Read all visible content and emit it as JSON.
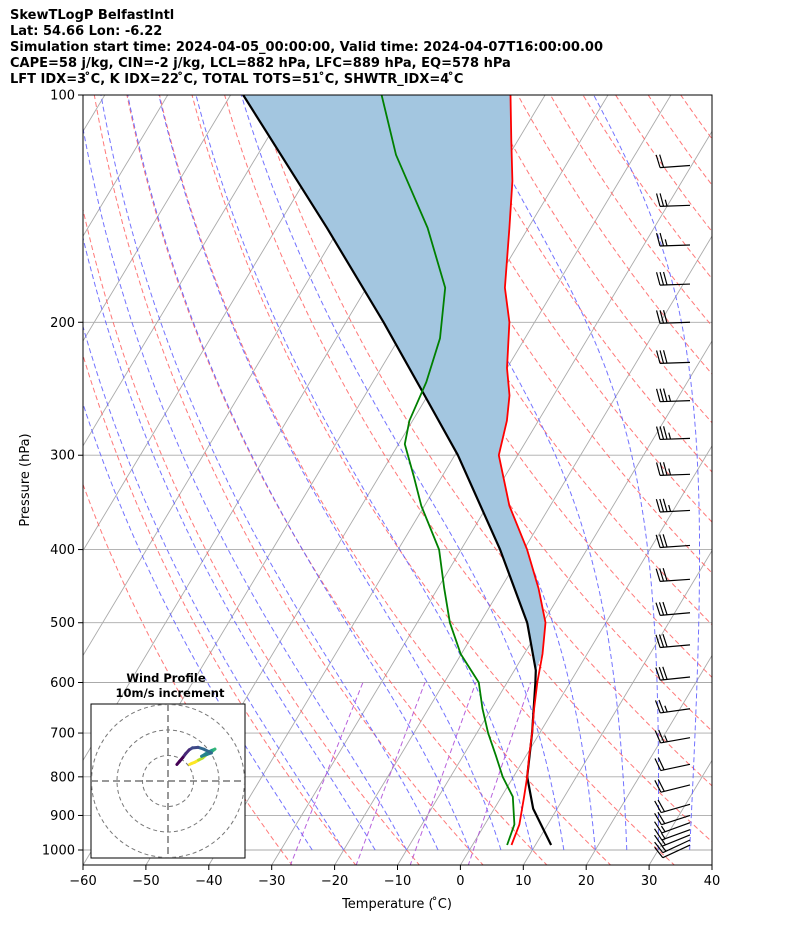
{
  "header": {
    "line1": "SkewTLogP BelfastIntl",
    "line2": "Lat: 54.66   Lon: -6.22",
    "line3": "Simulation start time: 2024-04-05_00:00:00, Valid time: 2024-04-07T16:00:00.00",
    "line4": "CAPE=58 j/kg, CIN=-2 j/kg, LCL=882 hPa, LFC=889 hPa, EQ=578 hPa",
    "line5": "LFT IDX=3 ̊C, K IDX=22 ̊C, TOTAL TOTS=51 ̊C, SHWTR_IDX=4 ̊C"
  },
  "chart_data": {
    "type": "line",
    "subtype": "skew-t log-p",
    "xlabel": "Temperature ( ̊C)",
    "ylabel": "Pressure (hPa)",
    "xlim": [
      -60,
      40
    ],
    "ylim": [
      1050,
      100
    ],
    "yscale": "log",
    "x_ticks": [
      "−60",
      "−50",
      "−40",
      "−30",
      "−20",
      "−10",
      "0",
      "10",
      "20",
      "30",
      "40"
    ],
    "x_tick_values": [
      -60,
      -50,
      -40,
      -30,
      -20,
      -10,
      0,
      10,
      20,
      30,
      40
    ],
    "y_ticks": [
      "100",
      "200",
      "300",
      "400",
      "500",
      "600",
      "700",
      "800",
      "900",
      "1000"
    ],
    "y_tick_values": [
      100,
      200,
      300,
      400,
      500,
      600,
      700,
      800,
      900,
      1000
    ],
    "grid": true,
    "series": [
      {
        "role": "temperature",
        "color": "#ff0000",
        "points": [
          [
            985,
            6.2
          ],
          [
            925,
            5.5
          ],
          [
            850,
            3.6
          ],
          [
            800,
            2.2
          ],
          [
            750,
            0.5
          ],
          [
            700,
            -1.2
          ],
          [
            650,
            -3.2
          ],
          [
            600,
            -5.2
          ],
          [
            550,
            -7.1
          ],
          [
            500,
            -9.6
          ],
          [
            450,
            -14.0
          ],
          [
            400,
            -19.5
          ],
          [
            350,
            -26.5
          ],
          [
            300,
            -33.0
          ],
          [
            270,
            -35.0
          ],
          [
            250,
            -37.0
          ],
          [
            230,
            -40.0
          ],
          [
            200,
            -44.0
          ],
          [
            180,
            -48.0
          ],
          [
            150,
            -53.0
          ],
          [
            130,
            -57.0
          ],
          [
            115,
            -61.0
          ],
          [
            100,
            -65.5
          ]
        ]
      },
      {
        "role": "dewpoint",
        "color": "#008000",
        "points": [
          [
            985,
            5.5
          ],
          [
            925,
            4.7
          ],
          [
            850,
            1.8
          ],
          [
            800,
            -1.7
          ],
          [
            750,
            -4.8
          ],
          [
            700,
            -8.2
          ],
          [
            650,
            -11.4
          ],
          [
            600,
            -14.5
          ],
          [
            550,
            -20.1
          ],
          [
            500,
            -24.8
          ],
          [
            450,
            -29.0
          ],
          [
            400,
            -33.5
          ],
          [
            350,
            -40.5
          ],
          [
            320,
            -44.5
          ],
          [
            290,
            -49.0
          ],
          [
            270,
            -50.5
          ],
          [
            240,
            -51.5
          ],
          [
            210,
            -53.5
          ],
          [
            180,
            -57.5
          ],
          [
            150,
            -66.0
          ],
          [
            120,
            -78.0
          ],
          [
            100,
            -86.0
          ]
        ]
      },
      {
        "role": "parcel",
        "color": "#000000",
        "points": [
          [
            985,
            12.5
          ],
          [
            882,
            6.2
          ],
          [
            800,
            2.2
          ],
          [
            700,
            -1.2
          ],
          [
            600,
            -5.5
          ],
          [
            578,
            -6.6
          ],
          [
            500,
            -12.5
          ],
          [
            400,
            -23.8
          ],
          [
            300,
            -39.5
          ],
          [
            250,
            -50.5
          ],
          [
            200,
            -64.0
          ],
          [
            150,
            -82.0
          ],
          [
            100,
            -108.0
          ]
        ]
      }
    ],
    "wind_barbs": [
      {
        "p": 985,
        "dir": 245,
        "spd": 12
      },
      {
        "p": 970,
        "dir": 245,
        "spd": 14
      },
      {
        "p": 955,
        "dir": 248,
        "spd": 15
      },
      {
        "p": 940,
        "dir": 250,
        "spd": 16
      },
      {
        "p": 920,
        "dir": 250,
        "spd": 17
      },
      {
        "p": 900,
        "dir": 252,
        "spd": 18
      },
      {
        "p": 870,
        "dir": 254,
        "spd": 19
      },
      {
        "p": 820,
        "dir": 256,
        "spd": 20
      },
      {
        "p": 770,
        "dir": 258,
        "spd": 22
      },
      {
        "p": 710,
        "dir": 260,
        "spd": 24
      },
      {
        "p": 650,
        "dir": 262,
        "spd": 26
      },
      {
        "p": 590,
        "dir": 264,
        "spd": 28
      },
      {
        "p": 535,
        "dir": 265,
        "spd": 30
      },
      {
        "p": 485,
        "dir": 265,
        "spd": 30
      },
      {
        "p": 438,
        "dir": 266,
        "spd": 32
      },
      {
        "p": 395,
        "dir": 266,
        "spd": 32
      },
      {
        "p": 355,
        "dir": 267,
        "spd": 34
      },
      {
        "p": 318,
        "dir": 268,
        "spd": 36
      },
      {
        "p": 285,
        "dir": 268,
        "spd": 36
      },
      {
        "p": 254,
        "dir": 268,
        "spd": 34
      },
      {
        "p": 226,
        "dir": 268,
        "spd": 32
      },
      {
        "p": 200,
        "dir": 268,
        "spd": 30
      },
      {
        "p": 178,
        "dir": 268,
        "spd": 28
      },
      {
        "p": 158,
        "dir": 268,
        "spd": 26
      },
      {
        "p": 140,
        "dir": 268,
        "spd": 24
      },
      {
        "p": 124,
        "dir": 266,
        "spd": 22
      }
    ],
    "hodograph": {
      "title": "Wind Profile",
      "subtitle": "10m/s increment",
      "ring_increment_ms": 10,
      "uv_points": [
        [
          8.5,
          6.5
        ],
        [
          9.3,
          6.9
        ],
        [
          10.4,
          7.3
        ],
        [
          12.0,
          8.2
        ],
        [
          13.5,
          9.0
        ],
        [
          14.9,
          10.2
        ],
        [
          16.2,
          11.2
        ],
        [
          17.5,
          11.8
        ],
        [
          18.4,
          12.5
        ],
        [
          17.2,
          12.0
        ],
        [
          15.5,
          11.2
        ],
        [
          14.5,
          10.5
        ],
        [
          13.2,
          9.7
        ],
        [
          15.5,
          10.5
        ],
        [
          17.0,
          11.0
        ],
        [
          14.0,
          12.5
        ],
        [
          11.8,
          13.2
        ],
        [
          9.6,
          13.0
        ],
        [
          8.3,
          12.2
        ],
        [
          7.0,
          10.8
        ],
        [
          5.8,
          9.2
        ],
        [
          4.6,
          7.8
        ],
        [
          3.5,
          6.5
        ]
      ]
    },
    "colors": {
      "cape_fill": "#a3c6e0",
      "isotherm": "#aaaaaa",
      "dry_adiabat": "#ff6060",
      "moist_adiabat": "#5a5aff",
      "mixing_ratio": "#b050d8"
    }
  }
}
